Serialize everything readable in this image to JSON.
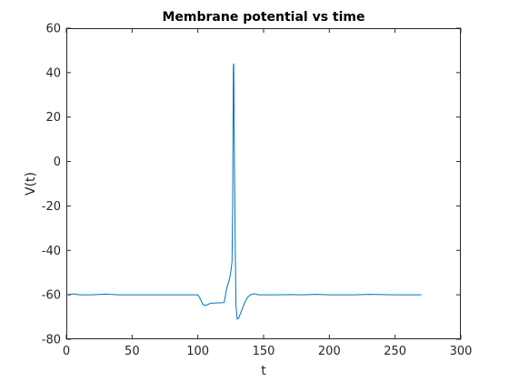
{
  "chart_data": {
    "type": "line",
    "title": "Membrane potential vs time",
    "xlabel": "t",
    "ylabel": "V(t)",
    "xlim": [
      0,
      300
    ],
    "ylim": [
      -80,
      60
    ],
    "xticks": [
      0,
      50,
      100,
      150,
      200,
      250,
      300
    ],
    "yticks": [
      -80,
      -60,
      -40,
      -20,
      0,
      20,
      40,
      60
    ],
    "xtick_labels": [
      "0",
      "50",
      "100",
      "150",
      "200",
      "250",
      "300"
    ],
    "ytick_labels": [
      "-80",
      "-60",
      "-40",
      "-20",
      "0",
      "20",
      "40",
      "60"
    ],
    "grid": false,
    "line_color": "#0072BD",
    "series": [
      {
        "x": [
          0,
          5,
          10,
          20,
          30,
          40,
          50,
          60,
          70,
          80,
          90,
          100,
          102,
          104,
          106,
          108,
          110,
          115,
          120,
          122,
          124,
          125,
          126,
          126.5,
          127,
          127.3,
          127.6,
          128,
          128.5,
          129,
          130,
          131,
          132,
          134,
          136,
          138,
          140,
          143,
          146,
          150,
          160,
          170,
          180,
          190,
          200,
          210,
          220,
          230,
          240,
          250,
          260,
          270
        ],
        "y": [
          -60,
          -59.6,
          -60,
          -60,
          -59.7,
          -60,
          -60,
          -60,
          -60,
          -60,
          -60,
          -60,
          -62,
          -64.5,
          -64.8,
          -64.2,
          -63.8,
          -63.6,
          -63.5,
          -57,
          -53,
          -50,
          -45,
          -20,
          43,
          44,
          20,
          -10,
          -40,
          -65,
          -71,
          -70.5,
          -69,
          -66,
          -63,
          -61,
          -60,
          -59.5,
          -60,
          -60,
          -60,
          -59.9,
          -60,
          -59.8,
          -60,
          -60,
          -60,
          -59.8,
          -59.9,
          -60,
          -60,
          -60
        ]
      }
    ]
  }
}
